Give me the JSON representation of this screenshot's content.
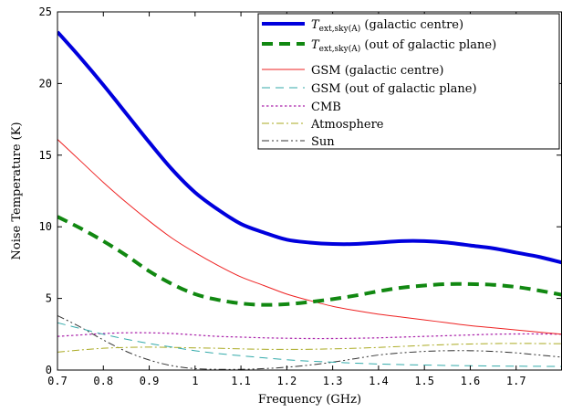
{
  "chart_data": {
    "type": "line",
    "xlabel": "Frequency (GHz)",
    "ylabel": "Noise Temperature (K)",
    "xlim": [
      0.7,
      1.8
    ],
    "ylim": [
      0,
      25
    ],
    "xticks": [
      "0.7",
      "0.8",
      "0.9",
      "1",
      "1.1",
      "1.2",
      "1.3",
      "1.4",
      "1.5",
      "1.6",
      "1.7"
    ],
    "yticks": [
      "0",
      "5",
      "10",
      "15",
      "20",
      "25"
    ],
    "grid": false,
    "legend_position": "top-right",
    "series": [
      {
        "name_main": "T",
        "name_sub": "ext,sky(A)",
        "name_suffix": " (galactic centre)",
        "color": "#0000dd",
        "style": "solid-thick",
        "x": [
          0.7,
          0.75,
          0.8,
          0.85,
          0.9,
          0.95,
          1.0,
          1.05,
          1.1,
          1.15,
          1.2,
          1.25,
          1.3,
          1.35,
          1.4,
          1.45,
          1.5,
          1.55,
          1.6,
          1.65,
          1.7,
          1.75,
          1.8
        ],
        "y": [
          23.6,
          21.8,
          19.9,
          17.9,
          15.9,
          14.0,
          12.4,
          11.2,
          10.2,
          9.6,
          9.1,
          8.9,
          8.8,
          8.8,
          8.9,
          9.0,
          9.0,
          8.9,
          8.7,
          8.5,
          8.2,
          7.9,
          7.5
        ]
      },
      {
        "name_main": "T",
        "name_sub": "ext,sky(A)",
        "name_suffix": " (out of galactic plane)",
        "color": "#118811",
        "style": "dashed-thick",
        "x": [
          0.7,
          0.75,
          0.8,
          0.85,
          0.9,
          0.95,
          1.0,
          1.05,
          1.1,
          1.15,
          1.2,
          1.25,
          1.3,
          1.35,
          1.4,
          1.45,
          1.5,
          1.55,
          1.6,
          1.65,
          1.7,
          1.75,
          1.8
        ],
        "y": [
          10.7,
          9.9,
          9.0,
          8.0,
          6.9,
          6.0,
          5.3,
          4.9,
          4.65,
          4.55,
          4.6,
          4.75,
          4.95,
          5.2,
          5.5,
          5.75,
          5.9,
          6.0,
          6.0,
          5.95,
          5.8,
          5.55,
          5.25
        ]
      },
      {
        "name": "GSM (galactic centre)",
        "color": "#ee2222",
        "style": "solid",
        "x": [
          0.7,
          0.75,
          0.8,
          0.85,
          0.9,
          0.95,
          1.0,
          1.05,
          1.1,
          1.15,
          1.2,
          1.25,
          1.3,
          1.35,
          1.4,
          1.45,
          1.5,
          1.55,
          1.6,
          1.65,
          1.7,
          1.75,
          1.8
        ],
        "y": [
          16.1,
          14.6,
          13.1,
          11.7,
          10.4,
          9.2,
          8.2,
          7.3,
          6.5,
          5.9,
          5.3,
          4.85,
          4.45,
          4.15,
          3.9,
          3.7,
          3.5,
          3.3,
          3.1,
          2.95,
          2.8,
          2.65,
          2.5
        ]
      },
      {
        "name": "GSM (out of galactic plane)",
        "color": "#33aaaa",
        "style": "dashed",
        "x": [
          0.7,
          0.75,
          0.8,
          0.85,
          0.9,
          0.95,
          1.0,
          1.05,
          1.1,
          1.15,
          1.2,
          1.25,
          1.3,
          1.35,
          1.4,
          1.45,
          1.5,
          1.55,
          1.6,
          1.65,
          1.7,
          1.75,
          1.8
        ],
        "y": [
          3.3,
          2.9,
          2.5,
          2.15,
          1.85,
          1.6,
          1.35,
          1.15,
          1.0,
          0.85,
          0.72,
          0.62,
          0.55,
          0.48,
          0.42,
          0.38,
          0.35,
          0.32,
          0.3,
          0.28,
          0.27,
          0.26,
          0.25
        ]
      },
      {
        "name": "CMB",
        "color": "#aa22aa",
        "style": "dotted",
        "x": [
          0.7,
          0.75,
          0.8,
          0.85,
          0.9,
          0.95,
          1.0,
          1.05,
          1.1,
          1.15,
          1.2,
          1.25,
          1.3,
          1.35,
          1.4,
          1.45,
          1.5,
          1.55,
          1.6,
          1.65,
          1.7,
          1.75,
          1.8
        ],
        "y": [
          2.35,
          2.45,
          2.55,
          2.6,
          2.6,
          2.55,
          2.45,
          2.35,
          2.3,
          2.25,
          2.22,
          2.2,
          2.2,
          2.22,
          2.25,
          2.3,
          2.35,
          2.4,
          2.45,
          2.5,
          2.52,
          2.52,
          2.5
        ]
      },
      {
        "name": "Atmosphere",
        "color": "#aaaa22",
        "style": "dashdot",
        "x": [
          0.7,
          0.75,
          0.8,
          0.85,
          0.9,
          0.95,
          1.0,
          1.05,
          1.1,
          1.15,
          1.2,
          1.25,
          1.3,
          1.35,
          1.4,
          1.45,
          1.5,
          1.55,
          1.6,
          1.65,
          1.7,
          1.75,
          1.8
        ],
        "y": [
          1.25,
          1.4,
          1.52,
          1.58,
          1.6,
          1.58,
          1.55,
          1.52,
          1.48,
          1.45,
          1.44,
          1.45,
          1.48,
          1.52,
          1.58,
          1.65,
          1.72,
          1.78,
          1.82,
          1.85,
          1.86,
          1.85,
          1.84
        ]
      },
      {
        "name": "Sun",
        "color": "#333333",
        "style": "dashdotdot",
        "x": [
          0.7,
          0.75,
          0.8,
          0.85,
          0.9,
          0.95,
          1.0,
          1.05,
          1.1,
          1.15,
          1.2,
          1.25,
          1.3,
          1.35,
          1.4,
          1.45,
          1.5,
          1.55,
          1.6,
          1.65,
          1.7,
          1.75,
          1.8
        ],
        "y": [
          3.8,
          3.0,
          2.1,
          1.3,
          0.7,
          0.3,
          0.1,
          0.05,
          0.05,
          0.1,
          0.2,
          0.35,
          0.55,
          0.8,
          1.05,
          1.2,
          1.3,
          1.35,
          1.35,
          1.3,
          1.2,
          1.05,
          0.9
        ]
      }
    ]
  }
}
